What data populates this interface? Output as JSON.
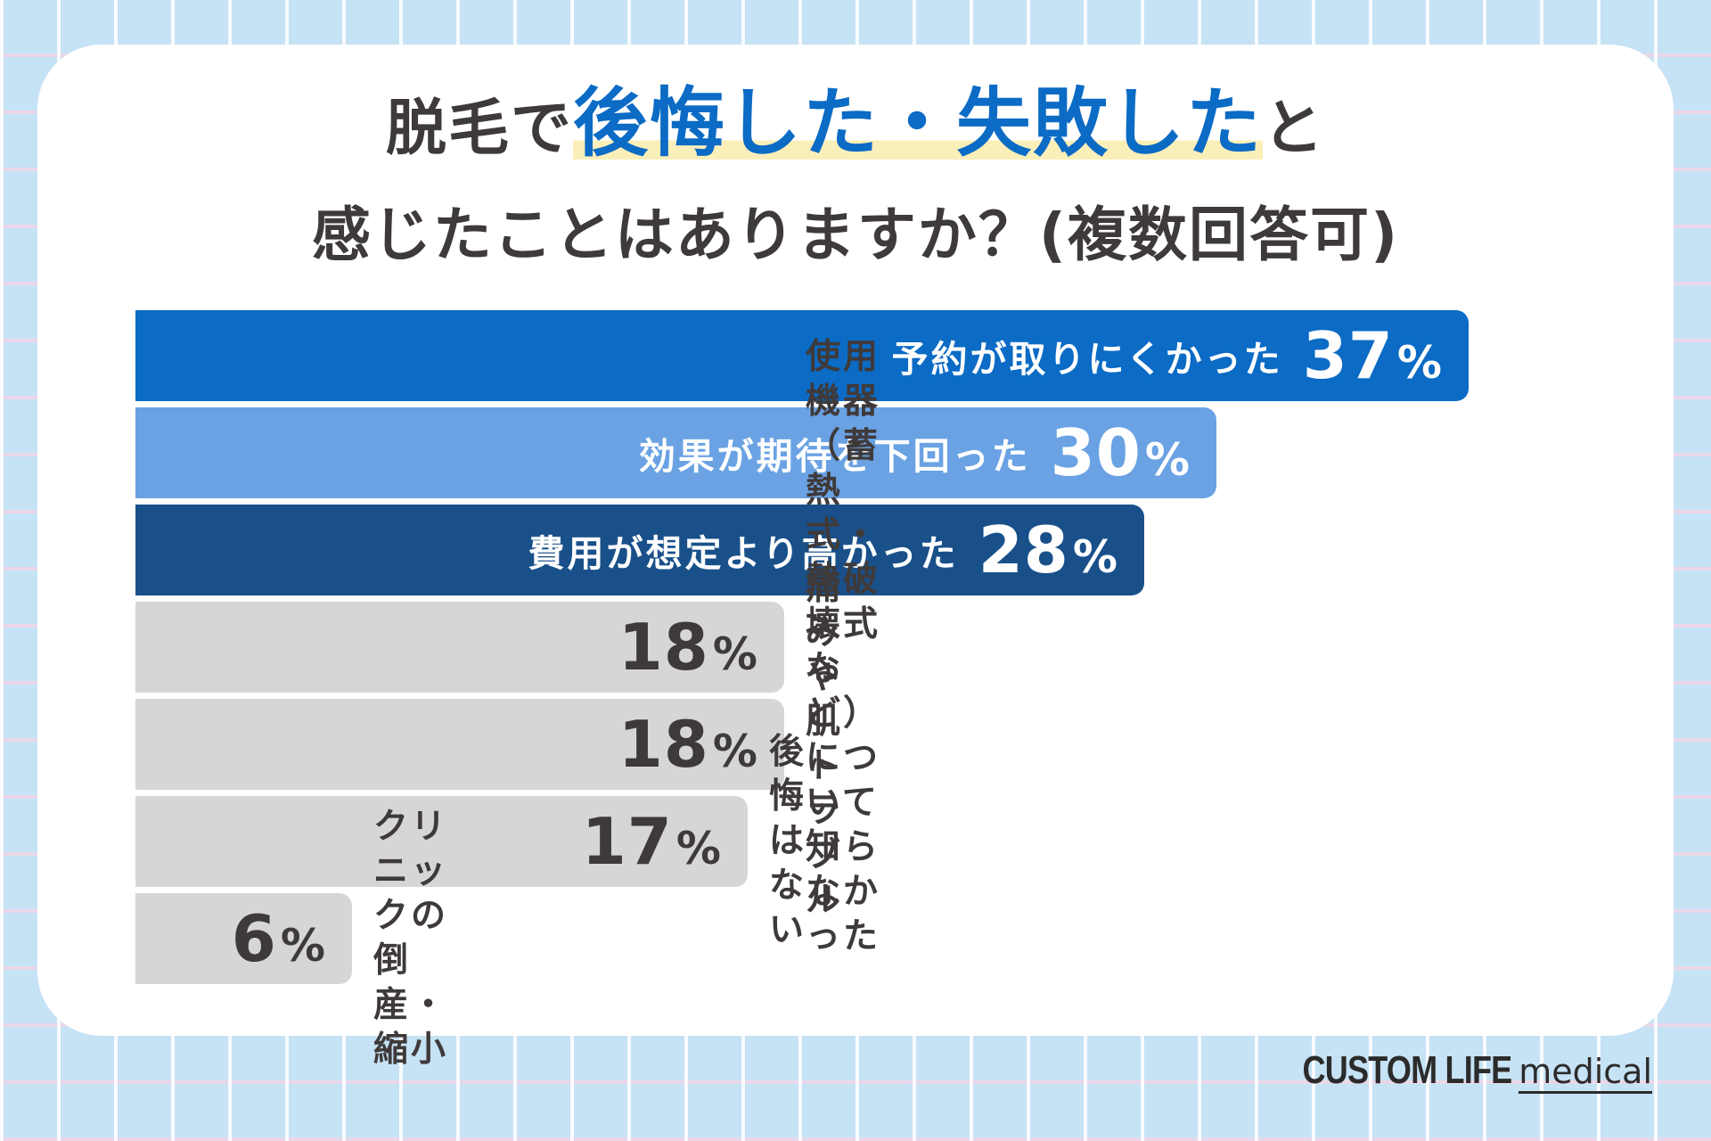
{
  "title": {
    "line1_pre": "脱毛で",
    "line1_highlight": "後悔した・失敗した",
    "line1_post": "と",
    "line2": "感じたことはありますか？(複数回答可)"
  },
  "chart_data": {
    "type": "bar",
    "orientation": "horizontal",
    "title": "脱毛で後悔した・失敗したと感じたことはありますか？(複数回答可)",
    "percent_symbol": "%",
    "xlim": [
      0,
      37
    ],
    "categories": [
      "予約が取りにくかった",
      "効果が期待を下回った",
      "費用が想定より高かった",
      "使用機器（蓄熱式・熱破壊式など）について知らなかった",
      "痛みや肌トラブル",
      "後悔はない",
      "クリニックの倒産・縮小"
    ],
    "label_lines": [
      [
        "予約が取りにくかった"
      ],
      [
        "効果が期待を下回った"
      ],
      [
        "費用が想定より高かった"
      ],
      [
        "使用機器（蓄熱式・熱破壊式など）",
        "について知らなかった"
      ],
      [
        "痛みや肌トラブル"
      ],
      [
        "後悔はない"
      ],
      [
        "クリニックの倒産・縮小"
      ]
    ],
    "values": [
      37,
      30,
      28,
      18,
      18,
      17,
      6
    ],
    "colors": [
      "#0b6bc5",
      "#6aa2e3",
      "#19508a",
      "#d6d6d6",
      "#d6d6d6",
      "#d6d6d6",
      "#d6d6d6"
    ],
    "label_inside": [
      true,
      true,
      true,
      false,
      false,
      false,
      false
    ],
    "text_color_inside": "#ffffff",
    "text_color_outside": "#3f3a3a"
  },
  "logo": {
    "brand": "CUSTOM LIFE",
    "sub": "medical"
  }
}
